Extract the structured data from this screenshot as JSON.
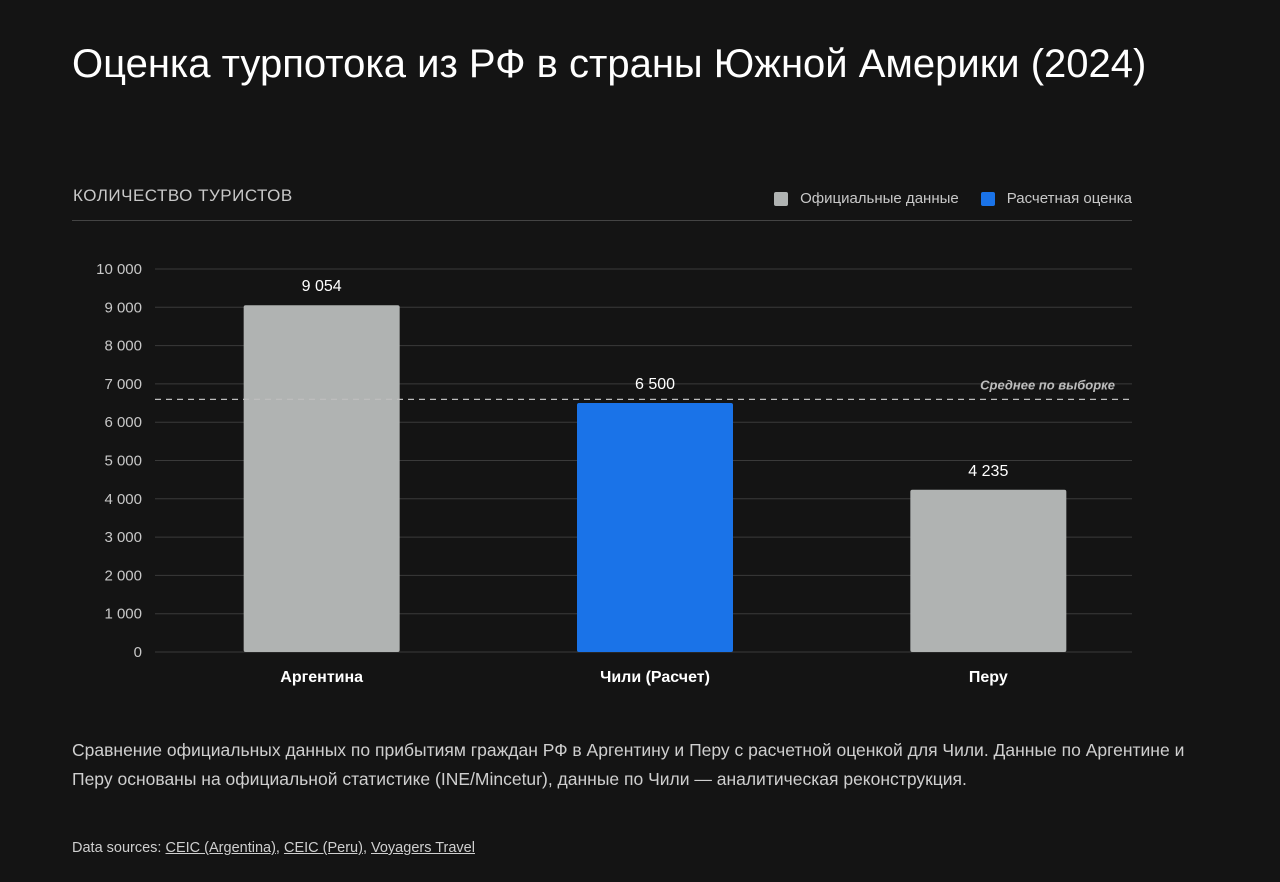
{
  "title": "Оценка турпотока из РФ в страны Южной Америки (2024)",
  "subheading": "КОЛИЧЕСТВО ТУРИСТОВ",
  "legend": [
    {
      "label": "Официальные данные",
      "color": "#b0b3b2"
    },
    {
      "label": "Расчетная оценка",
      "color": "#1a73e8"
    }
  ],
  "caption": "Сравнение официальных данных по прибытиям граждан РФ в Аргентину и Перу с расчетной оценкой для Чили. Данные по Аргентине и Перу основаны на официальной статистике (INE/Mincetur), данные по Чили — аналитическая реконструкция.",
  "sources": {
    "prefix": "Data sources:",
    "links": [
      "CEIC (Argentina)",
      "CEIC (Peru)",
      "Voyagers Travel"
    ]
  },
  "chart_data": {
    "type": "bar",
    "categories": [
      "Аргентина",
      "Чили (Расчет)",
      "Перу"
    ],
    "values": [
      9054,
      6500,
      4235
    ],
    "value_labels": [
      "9 054",
      "6 500",
      "4 235"
    ],
    "bar_kinds": [
      "official",
      "estimate",
      "official"
    ],
    "colors": {
      "official": "#b0b3b2",
      "estimate": "#1a73e8"
    },
    "ylim": [
      0,
      10000
    ],
    "yticks": [
      0,
      1000,
      2000,
      3000,
      4000,
      5000,
      6000,
      7000,
      8000,
      9000,
      10000
    ],
    "ytick_labels": [
      "0",
      "1 000",
      "2 000",
      "3 000",
      "4 000",
      "5 000",
      "6 000",
      "7 000",
      "8 000",
      "9 000",
      "10 000"
    ],
    "reference_line": {
      "value": 6596,
      "label": "Среднее по выборке"
    },
    "grid": true,
    "legend_position": "top-right"
  }
}
